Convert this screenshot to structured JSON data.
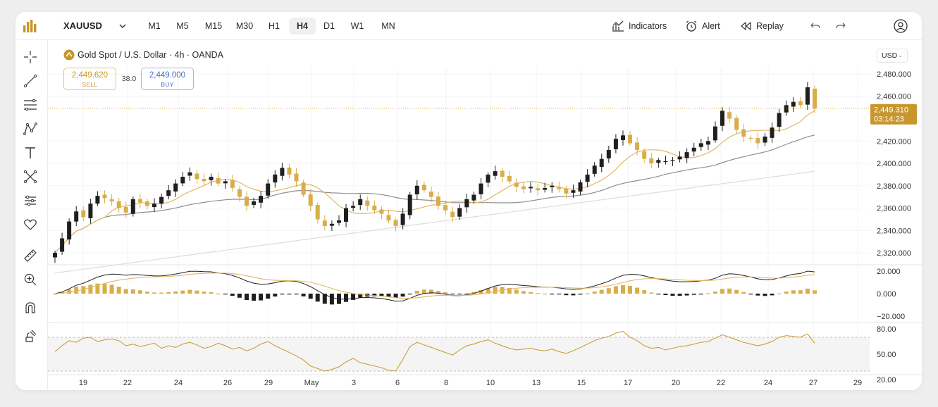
{
  "toolbar": {
    "symbol": "XAUUSD",
    "timeframes": [
      "M1",
      "M5",
      "M15",
      "M30",
      "H1",
      "H4",
      "D1",
      "W1",
      "MN"
    ],
    "active_timeframe": "H4",
    "indicators_label": "Indicators",
    "alert_label": "Alert",
    "replay_label": "Replay"
  },
  "sidebar": {
    "tools": [
      "crosshair-icon",
      "trend-line-icon",
      "fib-tool-icon",
      "pattern-icon",
      "text-icon",
      "prediction-icon",
      "settings-sliders-icon",
      "favorite-icon",
      "ruler-icon",
      "zoom-in-icon",
      "magnet-icon",
      "lock-drawing-icon"
    ]
  },
  "legend": {
    "title": "Gold Spot / U.S. Dollar · 4h · OANDA",
    "sell_price": "2,449.620",
    "sell_label": "SELL",
    "spread": "38.0",
    "buy_price": "2,449.000",
    "buy_label": "BUY"
  },
  "currency_select": {
    "value": "USD"
  },
  "price_axis": {
    "ticks": [
      "2,480.000",
      "2,460.000",
      "2,420.000",
      "2,400.000",
      "2,380.000",
      "2,360.000",
      "2,340.000",
      "2,320.000"
    ],
    "current_price": "2,449.310",
    "countdown": "03:14:23"
  },
  "macd_axis": {
    "ticks": [
      "20.000",
      "0.000",
      "−20.000"
    ]
  },
  "rsi_axis": {
    "ticks": [
      "80.00",
      "50.00",
      "20.00"
    ]
  },
  "time_axis": {
    "ticks": [
      "19",
      "22",
      "24",
      "26",
      "29",
      "May",
      "3",
      "6",
      "8",
      "10",
      "13",
      "15",
      "17",
      "20",
      "22",
      "24",
      "27",
      "29"
    ]
  },
  "colors": {
    "accent": "#c8962b",
    "bull_candle": "#1f1f1f",
    "bear_candle": "#d9ad4a",
    "ma_fast": "#e1b865",
    "ma_mid": "#8e8e8e",
    "ma_slow": "#dcdcdc",
    "buy_blue": "#4b6cc1"
  },
  "chart_data": {
    "type": "candlestick",
    "title": "Gold Spot / U.S. Dollar · 4h · OANDA",
    "ylim": [
      2310,
      2485
    ],
    "last_price": 2449.31,
    "x_ticks": [
      "19",
      "22",
      "24",
      "26",
      "29",
      "May",
      "3",
      "6",
      "8",
      "10",
      "13",
      "15",
      "17",
      "20",
      "22",
      "24",
      "27",
      "29"
    ],
    "closes": [
      2320,
      2333,
      2348,
      2357,
      2352,
      2364,
      2371,
      2369,
      2366,
      2360,
      2356,
      2368,
      2365,
      2362,
      2364,
      2370,
      2376,
      2382,
      2388,
      2392,
      2386,
      2384,
      2388,
      2382,
      2384,
      2378,
      2370,
      2362,
      2366,
      2371,
      2382,
      2390,
      2396,
      2390,
      2384,
      2372,
      2362,
      2350,
      2344,
      2346,
      2349,
      2360,
      2362,
      2368,
      2362,
      2358,
      2355,
      2349,
      2344,
      2355,
      2372,
      2380,
      2376,
      2370,
      2362,
      2358,
      2352,
      2360,
      2368,
      2372,
      2382,
      2390,
      2393,
      2388,
      2384,
      2379,
      2377,
      2379,
      2376,
      2378,
      2380,
      2377,
      2373,
      2376,
      2383,
      2390,
      2398,
      2404,
      2412,
      2422,
      2425,
      2418,
      2412,
      2404,
      2400,
      2403,
      2402,
      2403,
      2406,
      2410,
      2414,
      2418,
      2420,
      2433,
      2447,
      2440,
      2430,
      2424,
      2422,
      2418,
      2424,
      2432,
      2445,
      2452,
      2455,
      2452,
      2468,
      2449
    ],
    "macd_ylim": [
      -25,
      25
    ],
    "macd_ticks": [
      20,
      0,
      -20
    ],
    "rsi_ylim": [
      20,
      80
    ],
    "rsi_ticks": [
      80,
      50,
      20
    ],
    "rsi_bands": [
      70,
      30
    ],
    "rsi_values": [
      53,
      60,
      66,
      64,
      69,
      70,
      65,
      67,
      68,
      66,
      60,
      62,
      59,
      61,
      63,
      57,
      60,
      58,
      62,
      64,
      61,
      57,
      59,
      63,
      60,
      56,
      58,
      54,
      57,
      62,
      65,
      60,
      56,
      52,
      48,
      43,
      36,
      33,
      30,
      32,
      35,
      41,
      45,
      40,
      38,
      36,
      34,
      31,
      30,
      44,
      59,
      64,
      61,
      58,
      55,
      52,
      49,
      55,
      60,
      62,
      65,
      67,
      63,
      60,
      57,
      55,
      56,
      57,
      55,
      54,
      56,
      53,
      51,
      54,
      58,
      62,
      66,
      69,
      71,
      75,
      77,
      70,
      66,
      60,
      57,
      58,
      55,
      57,
      59,
      60,
      62,
      64,
      65,
      69,
      73,
      70,
      67,
      64,
      62,
      60,
      62,
      65,
      70,
      72,
      71,
      70,
      74,
      63
    ]
  }
}
